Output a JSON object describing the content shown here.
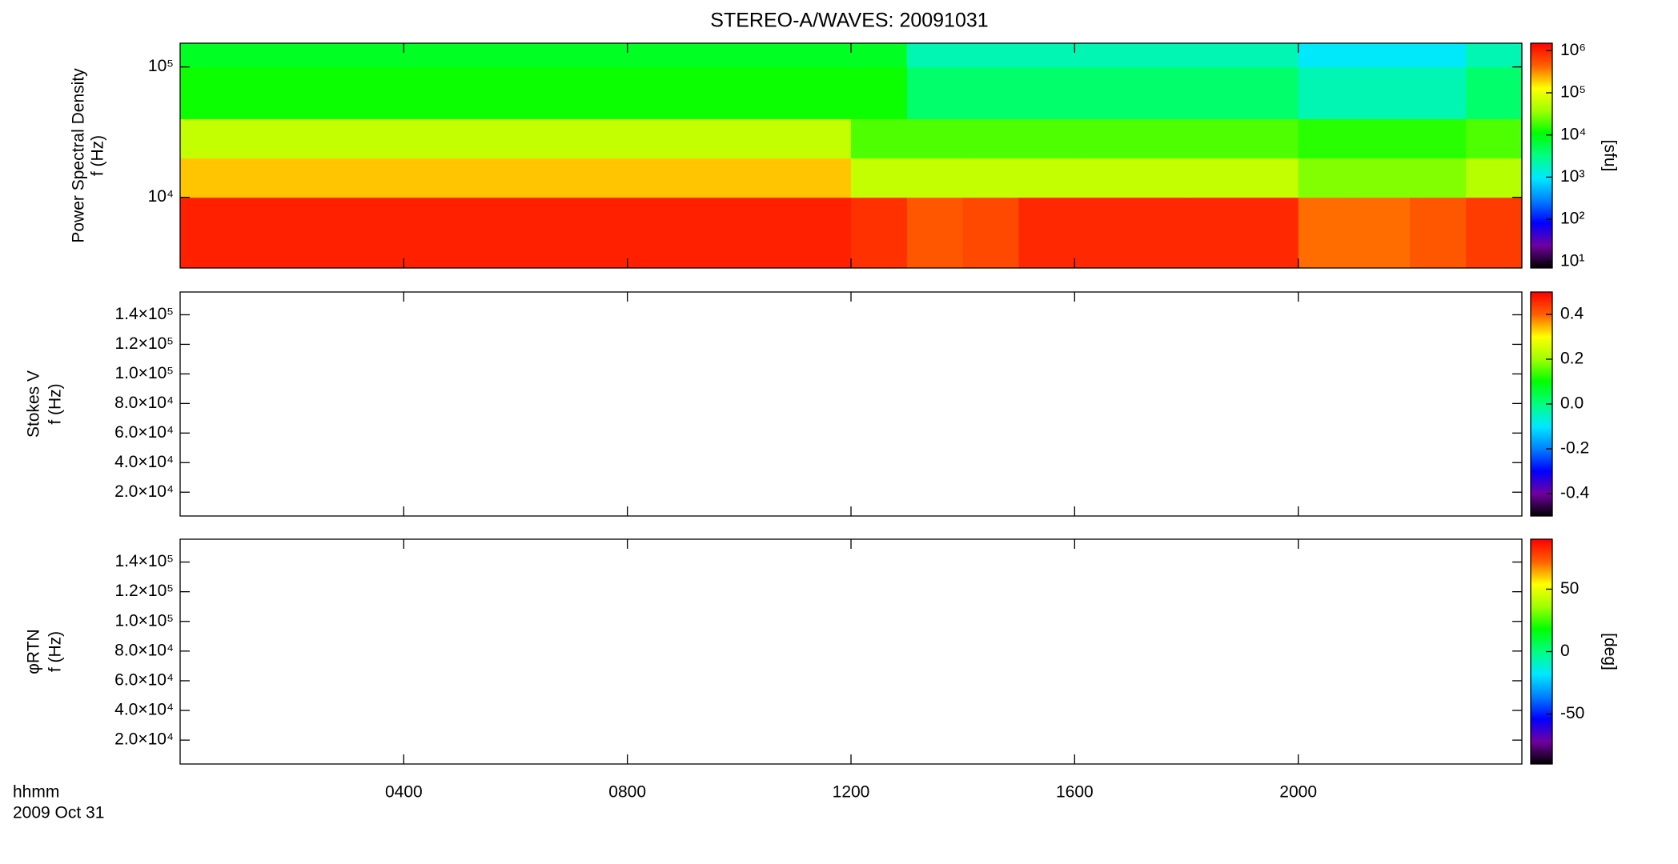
{
  "chart_data": [
    {
      "type": "heatmap",
      "title": "STEREO-A/WAVES: 20091031",
      "ylabel": [
        "Power Spectral Density",
        "f (Hz)"
      ],
      "xlim": [
        0,
        24
      ],
      "ylim": [
        2870,
        152000
      ],
      "ylog": true,
      "yticks": [
        {
          "value": 10000,
          "label": "10⁴"
        },
        {
          "value": 100000,
          "label": "10⁵"
        }
      ],
      "time_edges": [
        0,
        1,
        2,
        3,
        4,
        5,
        6,
        7,
        8,
        9,
        10,
        11,
        12,
        13,
        14,
        15,
        16,
        17,
        18,
        19,
        20,
        21,
        22,
        23,
        24
      ],
      "freq_edges": [
        2870,
        10000,
        20000,
        40000,
        100000,
        152000
      ],
      "z": [
        [
          1000000,
          1000000,
          1000000,
          1000000,
          1000000,
          1000000,
          1000000,
          1000000,
          1000000,
          1000000,
          1000000,
          1000000,
          800000,
          500000,
          600000,
          900000,
          900000,
          900000,
          900000,
          900000,
          400000,
          400000,
          500000,
          700000
        ],
        [
          200000,
          200000,
          200000,
          200000,
          200000,
          200000,
          200000,
          200000,
          200000,
          200000,
          200000,
          200000,
          60000,
          60000,
          60000,
          60000,
          60000,
          60000,
          60000,
          60000,
          30000,
          30000,
          30000,
          50000
        ],
        [
          60000,
          60000,
          60000,
          60000,
          60000,
          60000,
          60000,
          60000,
          60000,
          60000,
          60000,
          60000,
          20000,
          20000,
          20000,
          20000,
          20000,
          20000,
          20000,
          20000,
          15000,
          15000,
          15000,
          20000
        ],
        [
          12000,
          12000,
          12000,
          12000,
          12000,
          12000,
          12000,
          12000,
          12000,
          12000,
          12000,
          12000,
          12000,
          4000,
          4000,
          4000,
          4000,
          4000,
          4000,
          4000,
          2000,
          2000,
          2000,
          4000
        ],
        [
          8000,
          8000,
          8000,
          8000,
          8000,
          8000,
          8000,
          8000,
          8000,
          8000,
          8000,
          8000,
          8000,
          2000,
          2000,
          2000,
          2000,
          2000,
          2000,
          2000,
          1000,
          1000,
          1000,
          2000
        ]
      ],
      "clim": [
        7,
        1500000
      ],
      "clog": true,
      "clabel": "[sfu]",
      "cticks": [
        {
          "value": 10,
          "label": "10¹"
        },
        {
          "value": 100,
          "label": "10²"
        },
        {
          "value": 1000,
          "label": "10³"
        },
        {
          "value": 10000,
          "label": "10⁴"
        },
        {
          "value": 100000,
          "label": "10⁵"
        },
        {
          "value": 1000000,
          "label": "10⁶"
        }
      ],
      "colormap": [
        "#000000",
        "#7000a0",
        "#0000ff",
        "#0080ff",
        "#00e8ff",
        "#00ff80",
        "#00ff00",
        "#a0ff00",
        "#ffff00",
        "#ff6000",
        "#ff0000"
      ]
    },
    {
      "type": "heatmap",
      "ylabel": [
        "Stokes V",
        "f (Hz)"
      ],
      "xlim": [
        0,
        24
      ],
      "ylim": [
        3900,
        155400
      ],
      "yticks": [
        {
          "value": 20000,
          "label": "2.0×10⁴"
        },
        {
          "value": 40000,
          "label": "4.0×10⁴"
        },
        {
          "value": 60000,
          "label": "6.0×10⁴"
        },
        {
          "value": 80000,
          "label": "8.0×10⁴"
        },
        {
          "value": 100000,
          "label": "1.0×10⁵"
        },
        {
          "value": 120000,
          "label": "1.2×10⁵"
        },
        {
          "value": 140000,
          "label": "1.4×10⁵"
        }
      ],
      "clim": [
        -0.5,
        0.5
      ],
      "cticks": [
        {
          "value": -0.4,
          "label": "-0.4"
        },
        {
          "value": -0.2,
          "label": "-0.2"
        },
        {
          "value": 0,
          "label": "0.0"
        },
        0.2,
        0.4
      ],
      "colormap": [
        "#000000",
        "#7000a0",
        "#0000ff",
        "#0080ff",
        "#00e8ff",
        "#00ff80",
        "#00ff00",
        "#a0ff00",
        "#ffff00",
        "#ff6000",
        "#ff0000"
      ]
    },
    {
      "type": "heatmap",
      "ylabel": [
        "φRTN",
        "f (Hz)"
      ],
      "xlim": [
        0,
        24
      ],
      "ylim": [
        3900,
        155400
      ],
      "yticks": [
        {
          "value": 20000,
          "label": "2.0×10⁴"
        },
        {
          "value": 40000,
          "label": "4.0×10⁴"
        },
        {
          "value": 60000,
          "label": "6.0×10⁴"
        },
        {
          "value": 80000,
          "label": "8.0×10⁴"
        },
        {
          "value": 100000,
          "label": "1.0×10⁵"
        },
        {
          "value": 120000,
          "label": "1.2×10⁵"
        },
        {
          "value": 140000,
          "label": "1.4×10⁵"
        }
      ],
      "clim": [
        -90,
        90
      ],
      "clabel": "[deg]",
      "cticks": [
        -50,
        0,
        50
      ],
      "colormap": [
        "#000000",
        "#7000a0",
        "#0000ff",
        "#0080ff",
        "#00e8ff",
        "#00ff80",
        "#00ff00",
        "#a0ff00",
        "#ffff00",
        "#ff6000",
        "#ff0000"
      ],
      "xlabel": "hhmm",
      "date_label": "2009 Oct 31",
      "xticks": [
        {
          "value": 4,
          "label": "0400"
        },
        {
          "value": 8,
          "label": "0800"
        },
        {
          "value": 12,
          "label": "1200"
        },
        {
          "value": 16,
          "label": "1600"
        },
        {
          "value": 20,
          "label": "2000"
        }
      ]
    }
  ]
}
